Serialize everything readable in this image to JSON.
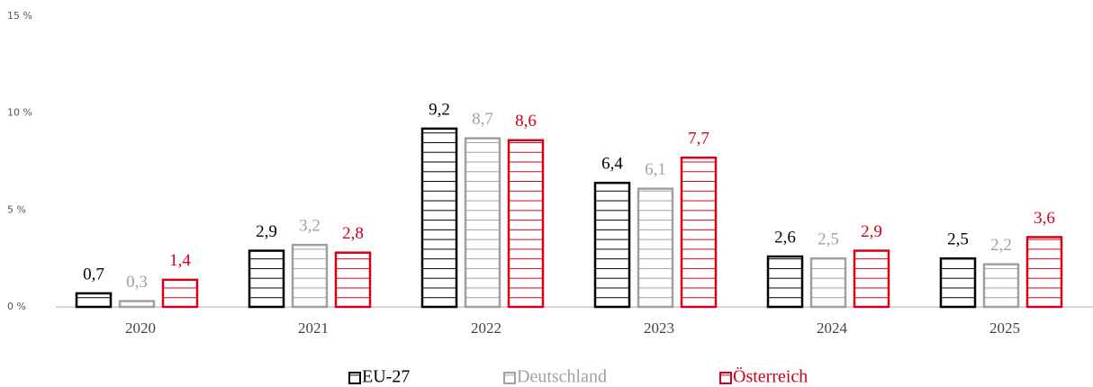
{
  "chart_data": {
    "type": "bar",
    "categories": [
      "2020",
      "2021",
      "2022",
      "2023",
      "2024",
      "2025"
    ],
    "series": [
      {
        "name": "EU-27",
        "color": "#000000",
        "values": [
          0.7,
          2.9,
          9.2,
          6.4,
          2.6,
          2.5
        ],
        "value_labels": [
          "0,7",
          "2,9",
          "9,2",
          "6,4",
          "2,6",
          "2,5"
        ]
      },
      {
        "name": "Deutschland",
        "color": "#a0a0a0",
        "values": [
          0.3,
          3.2,
          8.7,
          6.1,
          2.5,
          2.2
        ],
        "value_labels": [
          "0,3",
          "3,2",
          "8,7",
          "6,1",
          "2,5",
          "2,2"
        ]
      },
      {
        "name": "Österreich",
        "color": "#d0021b",
        "values": [
          1.4,
          2.8,
          8.6,
          7.7,
          2.9,
          3.6
        ],
        "value_labels": [
          "1,4",
          "2,8",
          "8,6",
          "7,7",
          "2,9",
          "3,6"
        ]
      }
    ],
    "ylim": [
      0,
      15
    ],
    "yticks": [
      {
        "value": 0,
        "label": "0 %"
      },
      {
        "value": 5,
        "label": "5 %"
      },
      {
        "value": 10,
        "label": "10 %"
      },
      {
        "value": 15,
        "label": "15 %"
      }
    ],
    "grid": false,
    "legend": "bottom"
  }
}
